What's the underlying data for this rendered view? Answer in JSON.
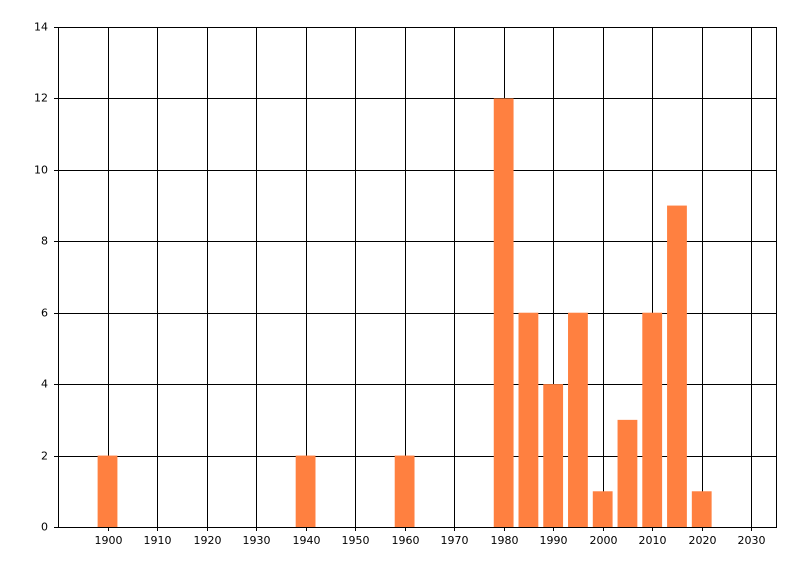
{
  "chart_data": {
    "type": "bar",
    "x": [
      1900,
      1940,
      1960,
      1980,
      1985,
      1990,
      1995,
      2000,
      2005,
      2010,
      2015,
      2020
    ],
    "values": [
      2,
      2,
      2,
      12,
      6,
      4,
      6,
      1,
      3,
      6,
      9,
      1
    ],
    "color": "#ff8040",
    "bar_width": 4,
    "xlim": [
      1890,
      2035
    ],
    "xticks": [
      1900,
      1910,
      1920,
      1930,
      1940,
      1950,
      1960,
      1970,
      1980,
      1990,
      2000,
      2010,
      2020,
      2030
    ],
    "ylim": [
      0,
      14
    ],
    "yticks": [
      0,
      2,
      4,
      6,
      8,
      10,
      12,
      14
    ],
    "grid": true
  }
}
